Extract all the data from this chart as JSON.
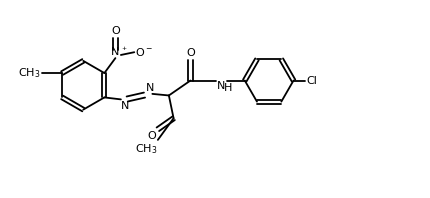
{
  "bg": "#ffffff",
  "lc": "#000000",
  "lw": 1.3,
  "fs": 8.0,
  "xlim": [
    0,
    10
  ],
  "ylim": [
    0,
    5
  ]
}
